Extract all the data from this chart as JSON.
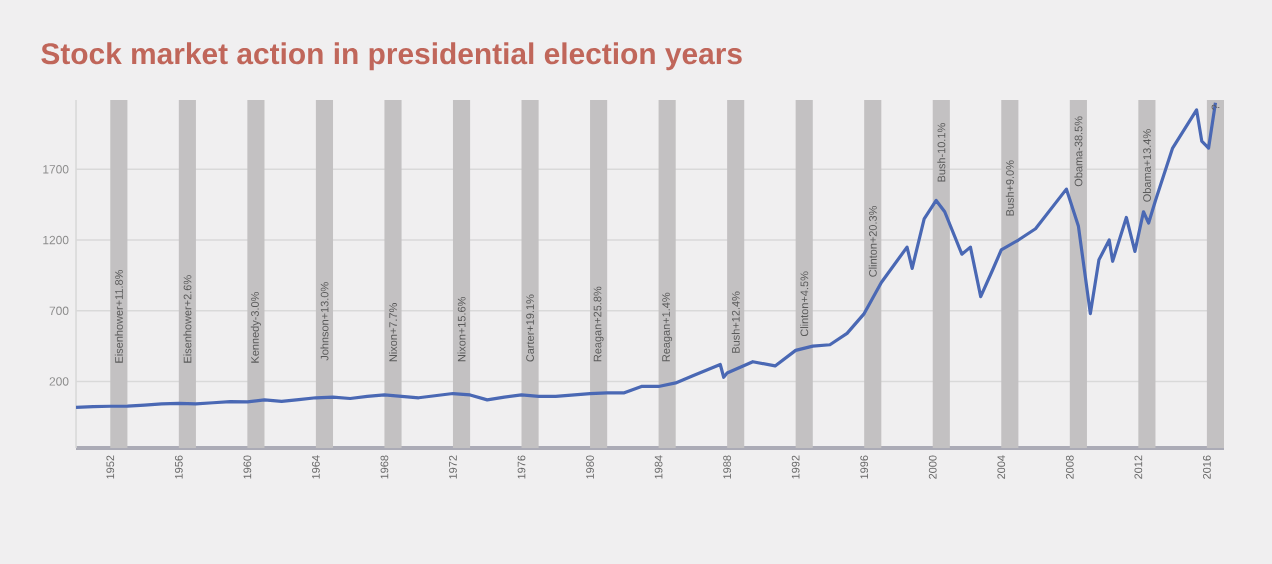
{
  "chart_data": {
    "type": "line",
    "title": "Stock market action in presidential election years",
    "x": [
      1950,
      1951,
      1952,
      1953,
      1954,
      1955,
      1956,
      1957,
      1958,
      1959,
      1960,
      1961,
      1962,
      1963,
      1964,
      1965,
      1966,
      1967,
      1968,
      1969,
      1970,
      1971,
      1972,
      1973,
      1974,
      1975,
      1976,
      1977,
      1978,
      1980,
      1981,
      1982,
      1983,
      1984,
      1985,
      1986,
      1987.6,
      1987.8,
      1988,
      1989.5,
      1990.8,
      1992,
      1993,
      1994,
      1995,
      1996,
      1997,
      1998.5,
      1998.8,
      1999.5,
      2000.2,
      2000.7,
      2001.7,
      2002.2,
      2002.8,
      2003.5,
      2004,
      2005,
      2006,
      2007.8,
      2008.5,
      2009.2,
      2009.7,
      2010.3,
      2010.5,
      2011.3,
      2011.8,
      2012.3,
      2012.6,
      2013,
      2014,
      2015.4,
      2015.7,
      2016.1,
      2016.5
    ],
    "series": [
      {
        "color": "#4a68b4",
        "values": [
          17,
          22,
          25,
          26,
          33,
          42,
          46,
          42,
          50,
          58,
          56,
          70,
          60,
          72,
          85,
          90,
          80,
          95,
          105,
          95,
          85,
          100,
          115,
          105,
          70,
          90,
          105,
          95,
          95,
          115,
          120,
          120,
          165,
          165,
          190,
          240,
          320,
          230,
          260,
          340,
          310,
          420,
          450,
          460,
          540,
          680,
          900,
          1150,
          1000,
          1350,
          1480,
          1400,
          1100,
          1150,
          800,
          990,
          1130,
          1200,
          1280,
          1560,
          1300,
          680,
          1060,
          1200,
          1050,
          1360,
          1120,
          1400,
          1320,
          1480,
          1850,
          2120,
          1900,
          1850,
          2170
        ]
      }
    ],
    "xlim": [
      1950,
      2017
    ],
    "ylim": [
      -270,
      2190
    ],
    "xticks": [
      1952,
      1956,
      1960,
      1964,
      1968,
      1972,
      1976,
      1980,
      1984,
      1988,
      1992,
      1996,
      2000,
      2004,
      2008,
      2012,
      2016
    ],
    "yticks": [
      200,
      700,
      1200,
      1700
    ],
    "grid": "y",
    "bands": [
      {
        "axis": "x",
        "from": 1952,
        "to": 1953,
        "color": "#c3c1c2"
      },
      {
        "axis": "x",
        "from": 1956,
        "to": 1957,
        "color": "#c3c1c2"
      },
      {
        "axis": "x",
        "from": 1960,
        "to": 1961,
        "color": "#c3c1c2"
      },
      {
        "axis": "x",
        "from": 1964,
        "to": 1965,
        "color": "#c3c1c2"
      },
      {
        "axis": "x",
        "from": 1968,
        "to": 1969,
        "color": "#c3c1c2"
      },
      {
        "axis": "x",
        "from": 1972,
        "to": 1973,
        "color": "#c3c1c2"
      },
      {
        "axis": "x",
        "from": 1976,
        "to": 1977,
        "color": "#c3c1c2"
      },
      {
        "axis": "x",
        "from": 1980,
        "to": 1981,
        "color": "#c3c1c2"
      },
      {
        "axis": "x",
        "from": 1984,
        "to": 1985,
        "color": "#c3c1c2"
      },
      {
        "axis": "x",
        "from": 1988,
        "to": 1989,
        "color": "#c3c1c2"
      },
      {
        "axis": "x",
        "from": 1992,
        "to": 1993,
        "color": "#c3c1c2"
      },
      {
        "axis": "x",
        "from": 1996,
        "to": 1997,
        "color": "#c3c1c2"
      },
      {
        "axis": "x",
        "from": 2000,
        "to": 2001,
        "color": "#c3c1c2"
      },
      {
        "axis": "x",
        "from": 2004,
        "to": 2005,
        "color": "#c3c1c2"
      },
      {
        "axis": "x",
        "from": 2008,
        "to": 2009,
        "color": "#c3c1c2"
      },
      {
        "axis": "x",
        "from": 2012,
        "to": 2013,
        "color": "#c3c1c2"
      },
      {
        "axis": "x",
        "from": 2016,
        "to": 2017,
        "color": "#c3c1c2"
      }
    ],
    "annotations": [
      {
        "text": "Eisenhower+11.8%",
        "x": 1952.5,
        "y": 310
      },
      {
        "text": "Eisenhower+2.6%",
        "x": 1956.5,
        "y": 310
      },
      {
        "text": "Kennedy-3.0%",
        "x": 1960.5,
        "y": 310
      },
      {
        "text": "Johnson+13.0%",
        "x": 1964.5,
        "y": 330
      },
      {
        "text": "Nixon+7.7%",
        "x": 1968.5,
        "y": 320
      },
      {
        "text": "Nixon+15.6%",
        "x": 1972.5,
        "y": 320
      },
      {
        "text": "Carter+19.1%",
        "x": 1976.5,
        "y": 320
      },
      {
        "text": "Reagan+25.8%",
        "x": 1980.5,
        "y": 320
      },
      {
        "text": "Reagan+1.4%",
        "x": 1984.5,
        "y": 320
      },
      {
        "text": "Bush+12.4%",
        "x": 1988.5,
        "y": 380
      },
      {
        "text": "Clinton+4.5%",
        "x": 1992.5,
        "y": 500
      },
      {
        "text": "Clinton+20.3%",
        "x": 1996.5,
        "y": 920
      },
      {
        "text": "Bush-10.1%",
        "x": 2000.5,
        "y": 1590
      },
      {
        "text": "Bush+9.0%",
        "x": 2004.5,
        "y": 1350
      },
      {
        "text": "Obama-38.5%",
        "x": 2008.5,
        "y": 1560
      },
      {
        "text": "Obama+13.4%",
        "x": 2012.5,
        "y": 1450
      },
      {
        "text": "?",
        "x": 2016.5,
        "y": 2100
      }
    ]
  }
}
